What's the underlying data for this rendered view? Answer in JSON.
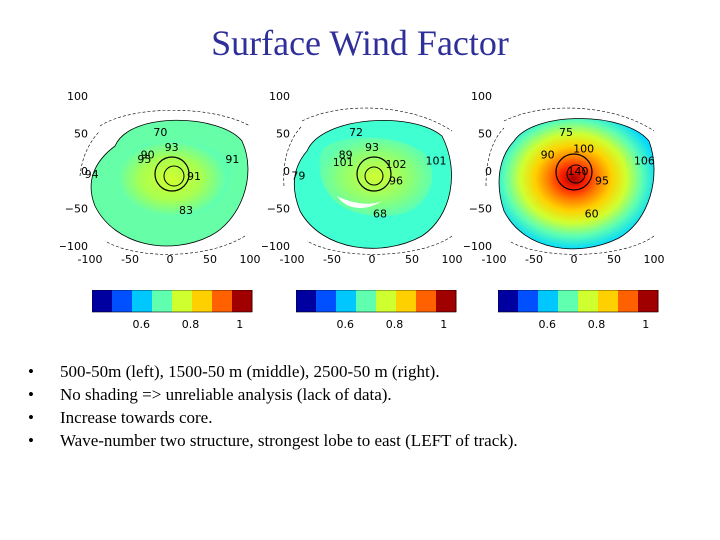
{
  "slide": {
    "title": "Surface Wind Factor",
    "bullets": [
      "500-50m (left), 1500-50 m (middle), 2500-50 m (right).",
      "No shading => unreliable analysis (lack of data).",
      "Increase towards core.",
      "Wave-number two structure, strongest lobe to east (LEFT of track)."
    ]
  },
  "colors": {
    "title": "#2f2f9a",
    "colormap": [
      "#0000a0",
      "#0050ff",
      "#00c8ff",
      "#60ffb0",
      "#d0ff30",
      "#ffd000",
      "#ff6000",
      "#a00000"
    ]
  },
  "chart_data": [
    {
      "type": "heatmap",
      "name": "500-50m",
      "xlim": [
        -100,
        100
      ],
      "ylim": [
        -100,
        100
      ],
      "xticks": [
        "-100",
        "-50",
        "0",
        "50",
        "100"
      ],
      "yticks": [
        "100",
        "50",
        "0",
        "−50",
        "−100"
      ],
      "contour_labels": [
        {
          "text": "70",
          "x": -12,
          "y": 47
        },
        {
          "text": "93",
          "x": 2,
          "y": 27
        },
        {
          "text": "90",
          "x": -28,
          "y": 17
        },
        {
          "text": "95",
          "x": -32,
          "y": 11
        },
        {
          "text": "91",
          "x": 78,
          "y": 11
        },
        {
          "text": "94",
          "x": -98,
          "y": -9
        },
        {
          "text": "91",
          "x": 30,
          "y": -12
        },
        {
          "text": "83",
          "x": 20,
          "y": -57
        }
      ],
      "colorbar": {
        "ticks": [
          "0.6",
          "0.8",
          "1"
        ]
      }
    },
    {
      "type": "heatmap",
      "name": "1500-50 m",
      "xlim": [
        -100,
        100
      ],
      "ylim": [
        -100,
        100
      ],
      "xticks": [
        "-100",
        "-50",
        "0",
        "50",
        "100"
      ],
      "yticks": [
        "100",
        "50",
        "0",
        "−50",
        "−100"
      ],
      "contour_labels": [
        {
          "text": "72",
          "x": -20,
          "y": 47
        },
        {
          "text": "93",
          "x": 0,
          "y": 27
        },
        {
          "text": "89",
          "x": -33,
          "y": 17
        },
        {
          "text": "101",
          "x": -36,
          "y": 7
        },
        {
          "text": "101",
          "x": 80,
          "y": 9
        },
        {
          "text": "102",
          "x": 30,
          "y": 4
        },
        {
          "text": "79",
          "x": -92,
          "y": -11
        },
        {
          "text": "96",
          "x": 30,
          "y": -18
        },
        {
          "text": "68",
          "x": 10,
          "y": -62
        }
      ],
      "colorbar": {
        "ticks": [
          "0.6",
          "0.8",
          "1"
        ]
      }
    },
    {
      "type": "heatmap",
      "name": "2500-50 m",
      "xlim": [
        -100,
        100
      ],
      "ylim": [
        -100,
        100
      ],
      "xticks": [
        "-100",
        "-50",
        "0",
        "50",
        "100"
      ],
      "yticks": [
        "100",
        "50",
        "0",
        "−50",
        "−100"
      ],
      "contour_labels": [
        {
          "text": "75",
          "x": -10,
          "y": 47
        },
        {
          "text": "100",
          "x": 12,
          "y": 25
        },
        {
          "text": "90",
          "x": -33,
          "y": 17
        },
        {
          "text": "140",
          "x": 5,
          "y": -5
        },
        {
          "text": "106",
          "x": 88,
          "y": 9
        },
        {
          "text": "95",
          "x": 35,
          "y": -18
        },
        {
          "text": "60",
          "x": 22,
          "y": -62
        }
      ],
      "colorbar": {
        "ticks": [
          "0.6",
          "0.8",
          "1"
        ]
      }
    }
  ]
}
